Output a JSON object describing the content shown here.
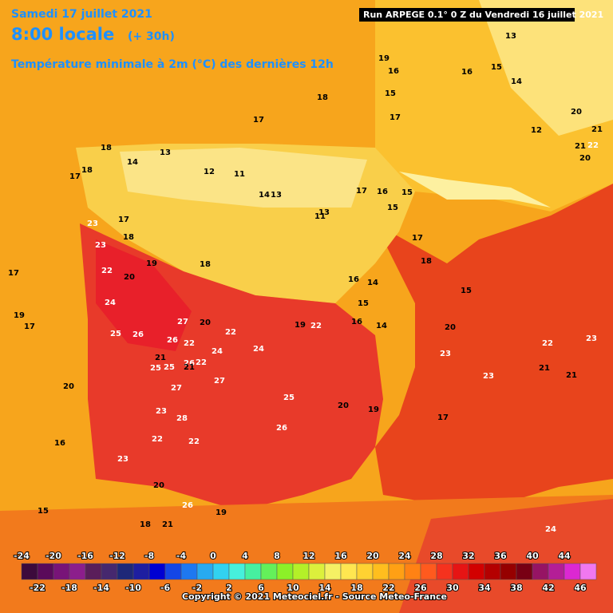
{
  "header": {
    "date": "Samedi 17 juillet 2021",
    "time": "8:00 locale",
    "lead": "(+ 30h)",
    "field": "Température minimale à 2m (°C) des dernières 12h",
    "run": "Run ARPEGE 0.1° 0 Z du Vendredi 16 juillet 2021"
  },
  "map_labels": [
    18,
    17,
    19,
    17,
    16,
    15,
    16,
    15,
    14,
    13,
    12,
    20,
    21,
    22,
    21,
    20,
    18,
    18,
    17,
    14,
    13,
    12,
    11,
    14,
    13,
    17,
    16,
    15,
    13,
    11,
    15,
    23,
    17,
    18,
    18,
    19,
    23,
    22,
    20,
    24,
    26,
    25,
    27,
    26,
    22,
    22,
    24,
    26,
    27,
    25,
    23,
    22,
    22,
    24,
    25,
    26,
    23,
    20,
    19,
    21,
    18,
    20,
    19,
    22,
    20,
    19,
    17,
    16,
    15,
    14,
    16,
    14,
    17,
    18,
    15,
    20,
    23,
    22,
    21,
    23,
    21,
    23,
    24,
    26,
    28,
    27,
    25,
    21,
    21,
    22,
    19,
    20,
    16,
    15,
    17,
    17
  ],
  "colorbar": {
    "top_ticks": [
      -24,
      -20,
      -16,
      -12,
      -8,
      -4,
      0,
      4,
      8,
      12,
      16,
      20,
      24,
      28,
      32,
      36,
      40,
      44
    ],
    "bottom_ticks": [
      -22,
      -18,
      -14,
      -10,
      -6,
      -2,
      2,
      6,
      10,
      14,
      18,
      22,
      26,
      30,
      34,
      38,
      42,
      46
    ],
    "colors": [
      "#3c0a3c",
      "#5a0a5a",
      "#781478",
      "#8c1e8c",
      "#5a1e5a",
      "#46286e",
      "#1e2878",
      "#1e1ea0",
      "#0000d2",
      "#1446e6",
      "#1e78f0",
      "#28aaf0",
      "#32d2f0",
      "#46f0dc",
      "#46f0a0",
      "#64f05a",
      "#8cf028",
      "#b4f028",
      "#dcf03c",
      "#f5f064",
      "#ffe650",
      "#ffd232",
      "#ffbe1e",
      "#ffa014",
      "#ff8214",
      "#ff5a1e",
      "#f5321e",
      "#e61414",
      "#d20000",
      "#b40000",
      "#960000",
      "#780014",
      "#961464",
      "#b41e96",
      "#dc28d2",
      "#f078f0"
    ]
  },
  "footer": {
    "copyright": "Copyright © 2021 Meteociel.fr - Source Meteo-France"
  }
}
